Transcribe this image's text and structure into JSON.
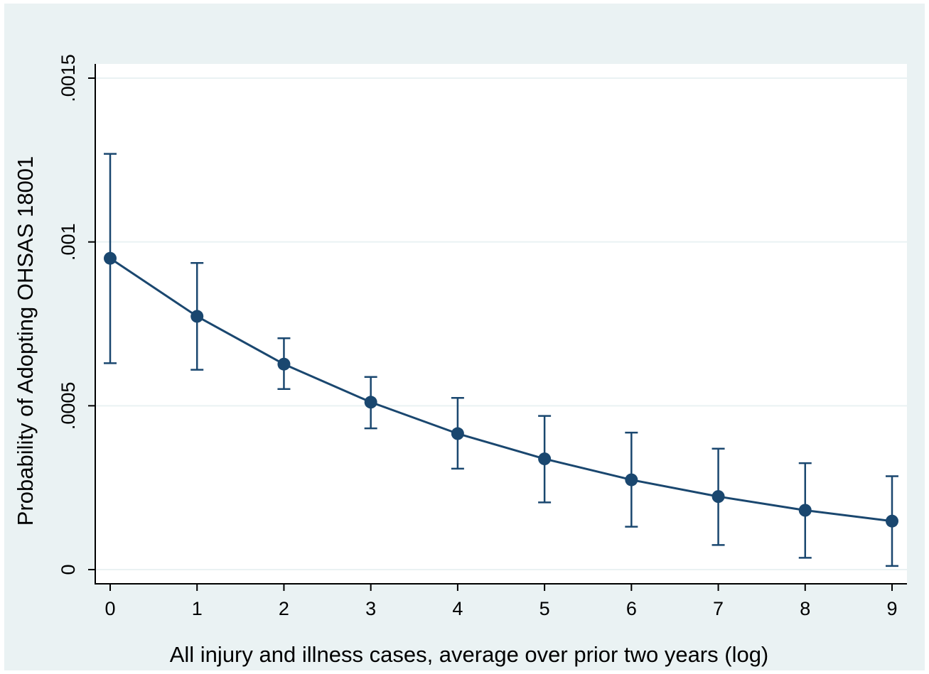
{
  "chart_data": {
    "type": "line",
    "xlabel": "All injury and illness cases, average over prior two years (log)",
    "ylabel": "Probability of Adopting OHSAS 18001",
    "xlim": [
      0,
      9
    ],
    "ylim": [
      0,
      0.0015
    ],
    "x_ticks": [
      0,
      1,
      2,
      3,
      4,
      5,
      6,
      7,
      8,
      9
    ],
    "x_tick_labels": [
      "0",
      "1",
      "2",
      "3",
      "4",
      "5",
      "6",
      "7",
      "8",
      "9"
    ],
    "y_ticks": [
      0,
      0.0005,
      0.001,
      0.0015
    ],
    "y_tick_labels": [
      "0",
      ".0005",
      ".001",
      ".0015"
    ],
    "grid": true,
    "error_bars": true,
    "series": [
      {
        "x": [
          0,
          1,
          2,
          3,
          4,
          5,
          6,
          7,
          8,
          9
        ],
        "values": [
          0.00095,
          0.000773,
          0.000627,
          0.000511,
          0.000415,
          0.000338,
          0.000274,
          0.000223,
          0.000181,
          0.000148
        ],
        "lower": [
          0.00063,
          0.00061,
          0.000551,
          0.000431,
          0.000308,
          0.000205,
          0.000131,
          7.5e-05,
          3.6e-05,
          1.1e-05
        ],
        "upper": [
          0.001269,
          0.000936,
          0.000706,
          0.000588,
          0.000524,
          0.000469,
          0.000418,
          0.000369,
          0.000325,
          0.000285
        ]
      }
    ],
    "colors": {
      "outer_background": "#eaf2f3",
      "plot_background": "#ffffff",
      "gridline": "#eaf2f3",
      "series": "#1a476f",
      "axis": "#000000"
    }
  }
}
